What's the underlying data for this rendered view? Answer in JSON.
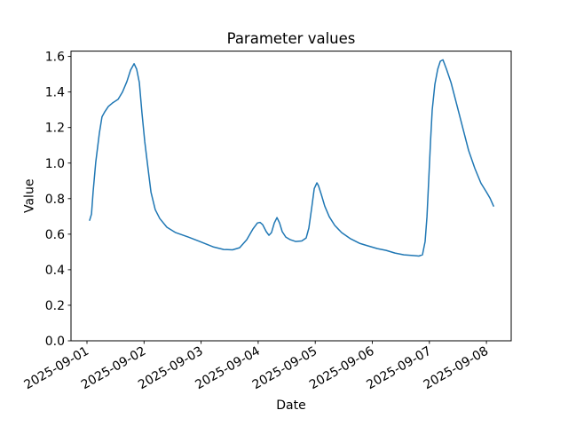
{
  "chart_data": {
    "type": "line",
    "title": "Parameter values",
    "xlabel": "Date",
    "ylabel": "Value",
    "x_tick_labels": [
      "2025-09-01",
      "2025-09-02",
      "2025-09-03",
      "2025-09-04",
      "2025-09-05",
      "2025-09-06",
      "2025-09-07",
      "2025-09-08"
    ],
    "x_tick_days": [
      0,
      1,
      2,
      3,
      4,
      5,
      6,
      7
    ],
    "y_tick_labels": [
      "0.0",
      "0.2",
      "0.4",
      "0.6",
      "0.8",
      "1.0",
      "1.2",
      "1.4",
      "1.6"
    ],
    "y_tick_values": [
      0.0,
      0.2,
      0.4,
      0.6,
      0.8,
      1.0,
      1.2,
      1.4,
      1.6
    ],
    "xlim_days": [
      -0.28,
      7.434
    ],
    "ylim": [
      0,
      1.63
    ],
    "x_unit": "days since 2025-09-01 00:00",
    "grid": false,
    "legend_position": "none",
    "line_color": "#1f77b4",
    "x_tick_rotation_deg": 30,
    "series": [
      {
        "points": [
          [
            0.046,
            0.678
          ],
          [
            0.079,
            0.713
          ],
          [
            0.108,
            0.837
          ],
          [
            0.154,
            1.006
          ],
          [
            0.217,
            1.17
          ],
          [
            0.263,
            1.26
          ],
          [
            0.313,
            1.289
          ],
          [
            0.375,
            1.319
          ],
          [
            0.45,
            1.339
          ],
          [
            0.546,
            1.359
          ],
          [
            0.621,
            1.399
          ],
          [
            0.7,
            1.459
          ],
          [
            0.763,
            1.523
          ],
          [
            0.825,
            1.559
          ],
          [
            0.871,
            1.528
          ],
          [
            0.917,
            1.453
          ],
          [
            0.963,
            1.285
          ],
          [
            1.013,
            1.121
          ],
          [
            1.075,
            0.957
          ],
          [
            1.121,
            0.837
          ],
          [
            1.196,
            0.738
          ],
          [
            1.275,
            0.688
          ],
          [
            1.4,
            0.639
          ],
          [
            1.554,
            0.609
          ],
          [
            1.775,
            0.584
          ],
          [
            1.975,
            0.559
          ],
          [
            2.208,
            0.529
          ],
          [
            2.396,
            0.514
          ],
          [
            2.55,
            0.512
          ],
          [
            2.675,
            0.524
          ],
          [
            2.8,
            0.569
          ],
          [
            2.908,
            0.629
          ],
          [
            2.988,
            0.663
          ],
          [
            3.033,
            0.666
          ],
          [
            3.079,
            0.653
          ],
          [
            3.142,
            0.614
          ],
          [
            3.188,
            0.594
          ],
          [
            3.233,
            0.609
          ],
          [
            3.283,
            0.663
          ],
          [
            3.329,
            0.693
          ],
          [
            3.375,
            0.663
          ],
          [
            3.421,
            0.614
          ],
          [
            3.483,
            0.584
          ],
          [
            3.563,
            0.569
          ],
          [
            3.654,
            0.559
          ],
          [
            3.763,
            0.562
          ],
          [
            3.842,
            0.579
          ],
          [
            3.888,
            0.634
          ],
          [
            3.938,
            0.748
          ],
          [
            3.983,
            0.857
          ],
          [
            4.029,
            0.889
          ],
          [
            4.058,
            0.872
          ],
          [
            4.108,
            0.822
          ],
          [
            4.167,
            0.758
          ],
          [
            4.246,
            0.698
          ],
          [
            4.342,
            0.649
          ],
          [
            4.463,
            0.609
          ],
          [
            4.621,
            0.574
          ],
          [
            4.775,
            0.549
          ],
          [
            4.929,
            0.534
          ],
          [
            5.088,
            0.519
          ],
          [
            5.242,
            0.509
          ],
          [
            5.396,
            0.494
          ],
          [
            5.554,
            0.484
          ],
          [
            5.708,
            0.48
          ],
          [
            5.817,
            0.477
          ],
          [
            5.879,
            0.484
          ],
          [
            5.925,
            0.559
          ],
          [
            5.958,
            0.698
          ],
          [
            5.988,
            0.897
          ],
          [
            6.021,
            1.121
          ],
          [
            6.05,
            1.299
          ],
          [
            6.096,
            1.443
          ],
          [
            6.146,
            1.528
          ],
          [
            6.192,
            1.573
          ],
          [
            6.238,
            1.581
          ],
          [
            6.3,
            1.528
          ],
          [
            6.379,
            1.453
          ],
          [
            6.488,
            1.319
          ],
          [
            6.596,
            1.185
          ],
          [
            6.688,
            1.071
          ],
          [
            6.796,
            0.971
          ],
          [
            6.904,
            0.887
          ],
          [
            7.0,
            0.837
          ],
          [
            7.063,
            0.803
          ],
          [
            7.125,
            0.758
          ]
        ]
      }
    ]
  }
}
